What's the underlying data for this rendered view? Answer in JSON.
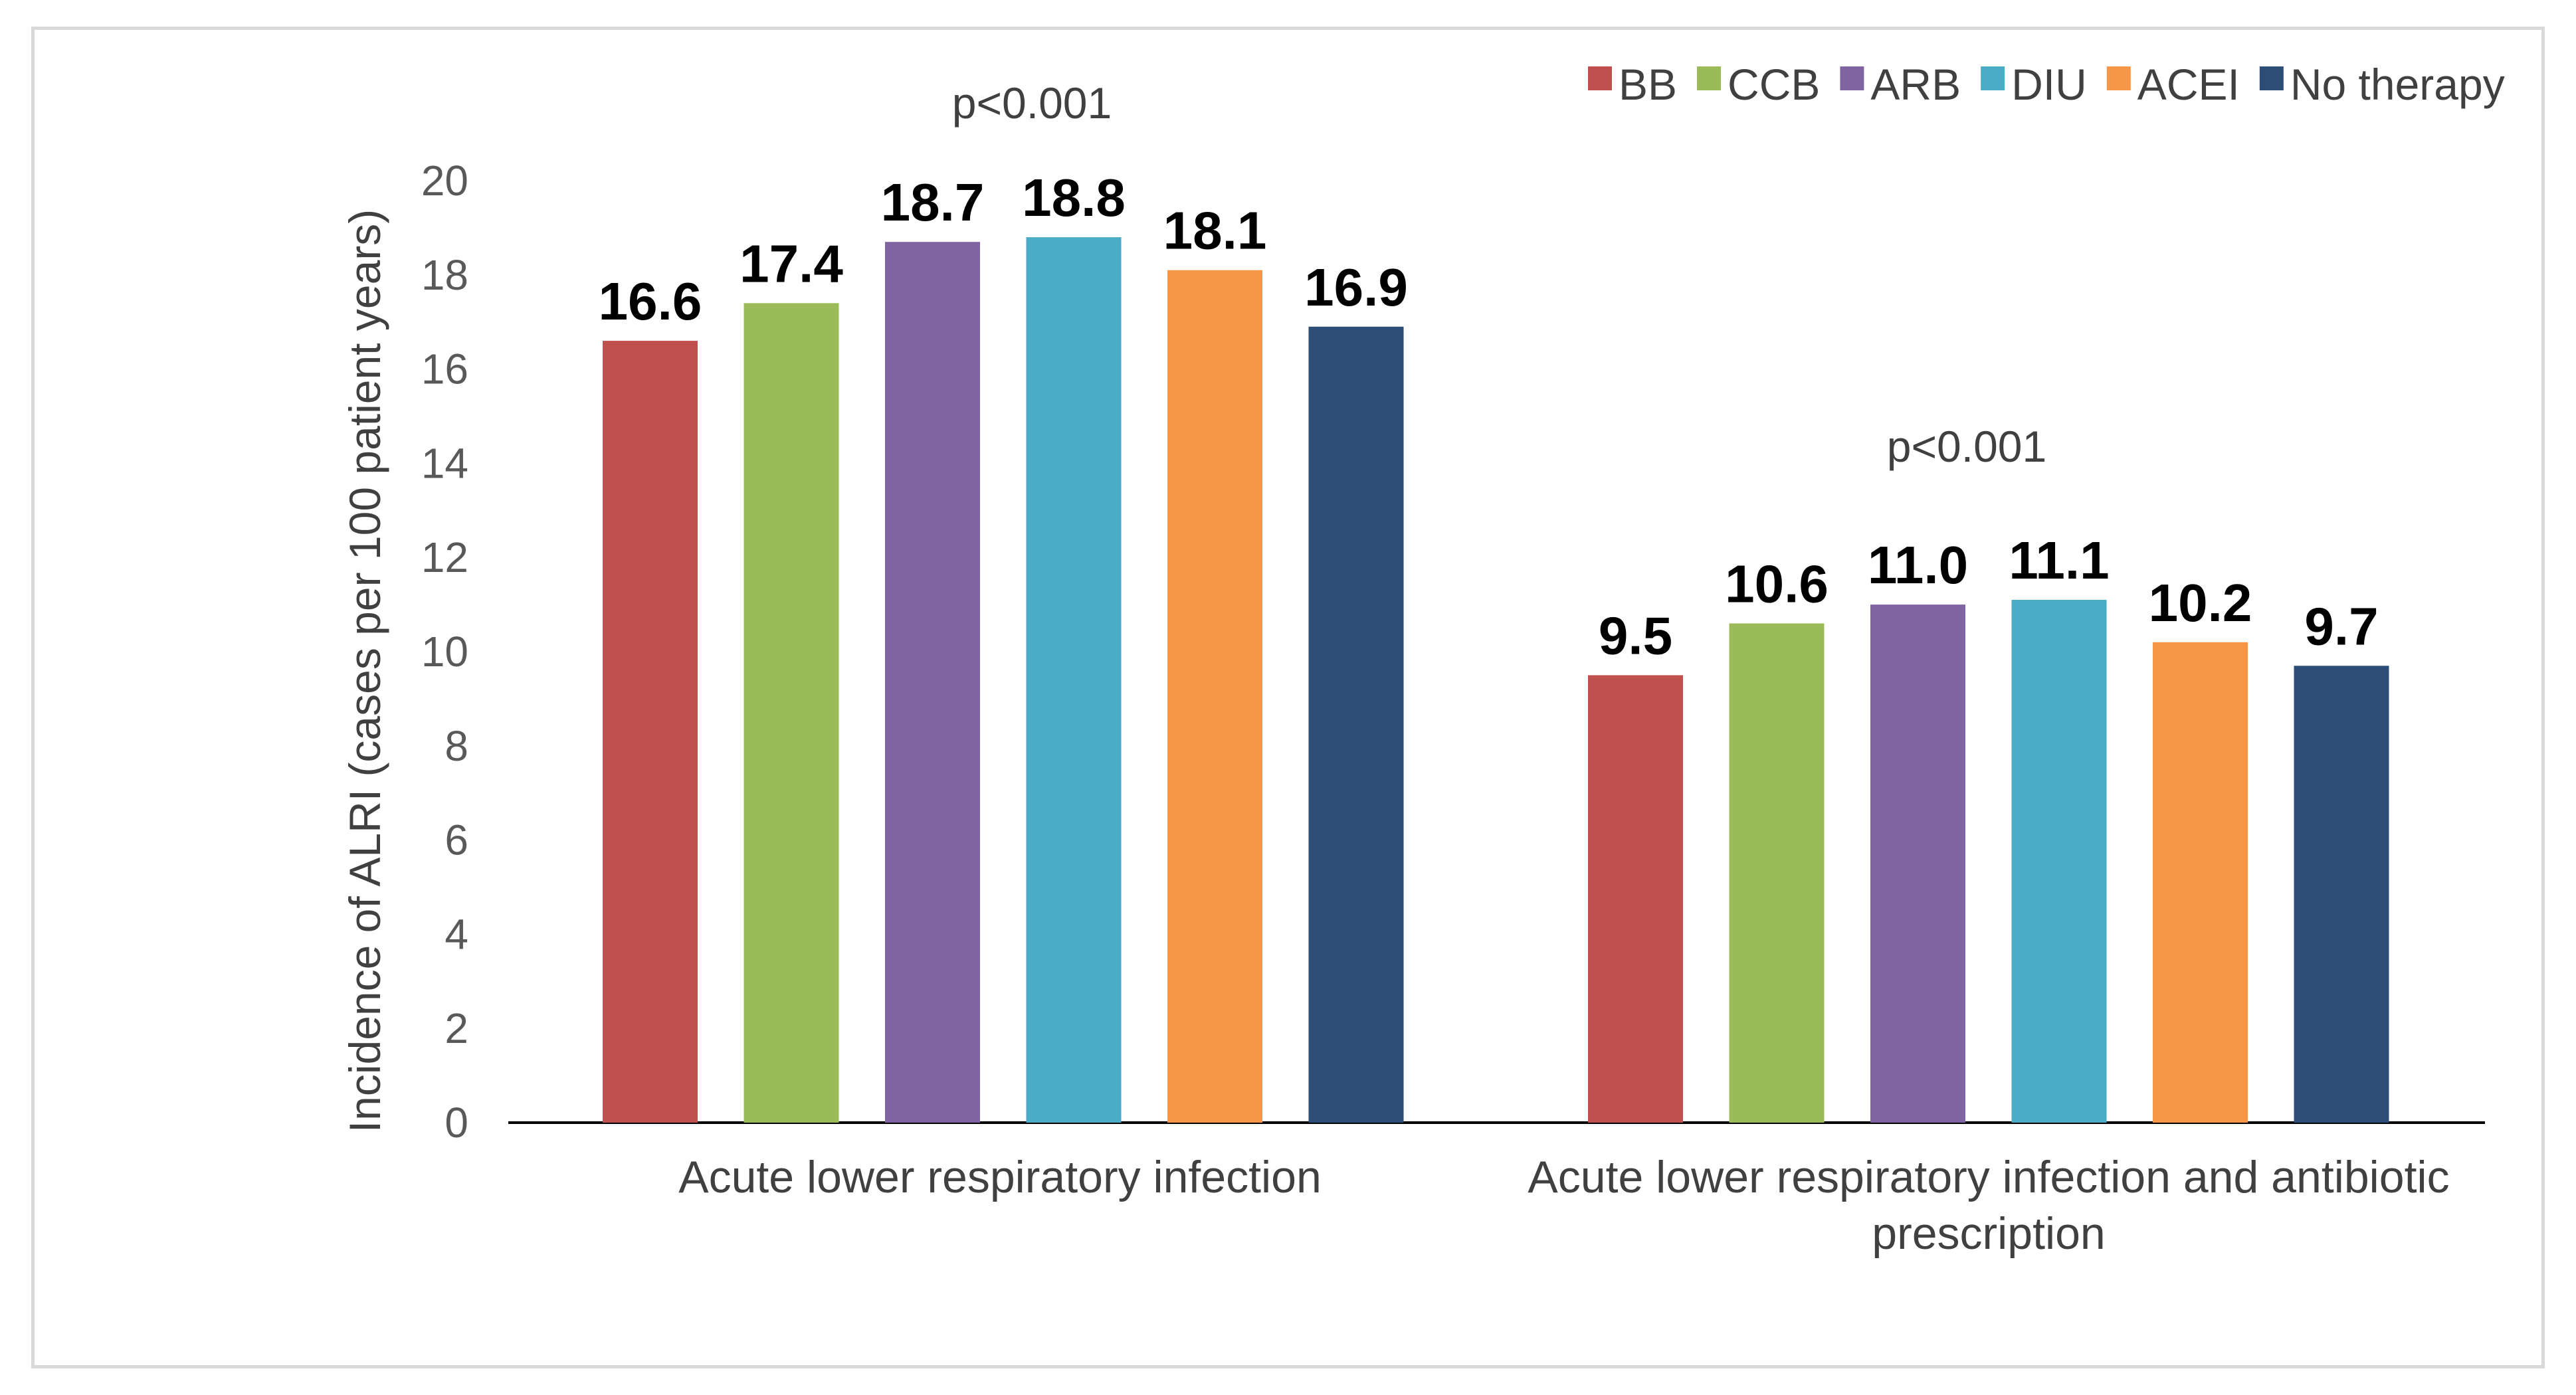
{
  "chart_data": {
    "type": "bar",
    "title": "",
    "xlabel": "",
    "ylabel": "Incidence  of ALRI (cases per 100 patient years)",
    "ylim": [
      0,
      20
    ],
    "yticks": [
      0,
      2,
      4,
      6,
      8,
      10,
      12,
      14,
      16,
      18,
      20
    ],
    "grid": false,
    "legend_position": "top-right",
    "categories": [
      [
        "Acute lower respiratory infection"
      ],
      [
        "Acute lower respiratory infection and antibiotic",
        "prescription"
      ]
    ],
    "annotations": [
      "p<0.001",
      "p<0.001"
    ],
    "series": [
      {
        "name": "BB",
        "color": "#c0504d",
        "values": [
          16.6,
          9.5
        ],
        "labels": [
          "16.6",
          "9.5"
        ]
      },
      {
        "name": "CCB",
        "color": "#9bbb59",
        "values": [
          17.4,
          10.6
        ],
        "labels": [
          "17.4",
          "10.6"
        ]
      },
      {
        "name": "ARB",
        "color": "#8064a2",
        "values": [
          18.7,
          11.0
        ],
        "labels": [
          "18.7",
          "11.0"
        ]
      },
      {
        "name": "DIU",
        "color": "#4bacc6",
        "values": [
          18.8,
          11.1
        ],
        "labels": [
          "18.8",
          "11.1"
        ]
      },
      {
        "name": "ACEI",
        "color": "#f79646",
        "values": [
          18.1,
          10.2
        ],
        "labels": [
          "18.1",
          "10.2"
        ]
      },
      {
        "name": "No therapy",
        "color": "#2c4d75",
        "values": [
          16.9,
          9.7
        ],
        "labels": [
          "16.9",
          "9.7"
        ]
      }
    ]
  }
}
